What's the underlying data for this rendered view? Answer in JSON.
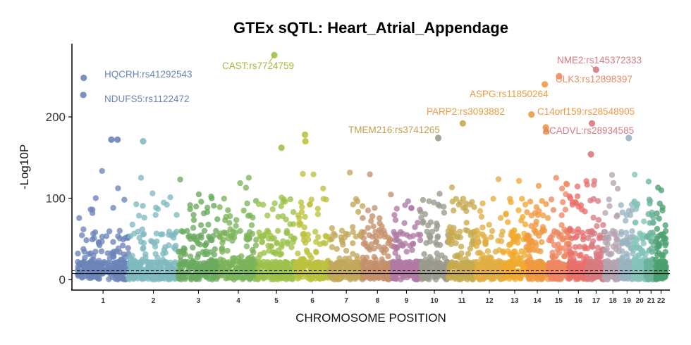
{
  "chart_data": {
    "type": "scatter",
    "subtype": "manhattan",
    "title": "GTEx sQTL: Heart_Atrial_Appendage",
    "xlabel": "CHROMOSOME POSITION",
    "ylabel": "-Log10P",
    "ylim": [
      -5,
      290
    ],
    "yticks": [
      0,
      100,
      200
    ],
    "grid": false,
    "legend": "none",
    "significance_line": 7.3,
    "chromosomes": [
      {
        "name": "1",
        "color": "#6b84b8",
        "start": 0,
        "end": 2.49
      },
      {
        "name": "2",
        "color": "#7fbac0",
        "start": 2.49,
        "end": 4.91
      },
      {
        "name": "3",
        "color": "#6aaa60",
        "start": 4.91,
        "end": 6.89
      },
      {
        "name": "4",
        "color": "#7bb45a",
        "start": 6.89,
        "end": 8.8
      },
      {
        "name": "5",
        "color": "#9cc24a",
        "start": 8.8,
        "end": 10.61
      },
      {
        "name": "6",
        "color": "#bcc23e",
        "start": 10.61,
        "end": 12.32
      },
      {
        "name": "7",
        "color": "#c2a85a",
        "start": 12.32,
        "end": 13.91
      },
      {
        "name": "8",
        "color": "#c4906a",
        "start": 13.91,
        "end": 15.36
      },
      {
        "name": "9",
        "color": "#b07aa4",
        "start": 15.36,
        "end": 16.74
      },
      {
        "name": "10",
        "color": "#9a9a8e",
        "start": 16.74,
        "end": 18.08
      },
      {
        "name": "11",
        "color": "#c6aa50",
        "start": 18.08,
        "end": 19.43
      },
      {
        "name": "12",
        "color": "#e0ae42",
        "start": 19.43,
        "end": 20.76
      },
      {
        "name": "13",
        "color": "#f0aa2e",
        "start": 20.76,
        "end": 21.9
      },
      {
        "name": "14",
        "color": "#f09a40",
        "start": 21.9,
        "end": 22.97
      },
      {
        "name": "15",
        "color": "#ee8860",
        "start": 22.97,
        "end": 23.99
      },
      {
        "name": "16",
        "color": "#e8706a",
        "start": 23.99,
        "end": 24.89
      },
      {
        "name": "17",
        "color": "#d87a80",
        "start": 24.89,
        "end": 25.72
      },
      {
        "name": "18",
        "color": "#b4a4b0",
        "start": 25.72,
        "end": 26.52
      },
      {
        "name": "19",
        "color": "#98b4c0",
        "start": 26.52,
        "end": 27.11
      },
      {
        "name": "20",
        "color": "#84c4b8",
        "start": 27.11,
        "end": 27.75
      },
      {
        "name": "21",
        "color": "#6cb49c",
        "start": 27.75,
        "end": 28.22
      },
      {
        "name": "22",
        "color": "#4aa070",
        "start": 28.22,
        "end": 28.73
      }
    ],
    "xticks": [
      "1",
      "2",
      "3",
      "4",
      "5",
      "6",
      "7",
      "8",
      "9",
      "10",
      "11",
      "12",
      "13",
      "14",
      "15",
      "16",
      "17",
      "18",
      "19",
      "20",
      "21",
      "22"
    ],
    "annotations": [
      {
        "label": "HQCRH:rs41292543",
        "chrom": "1",
        "pos": 0.3,
        "y": 248,
        "color": "#6b84b8"
      },
      {
        "label": "NDUFS5:rs1122472",
        "chrom": "1",
        "pos": 0.3,
        "y": 227,
        "color": "#6b84b8"
      },
      {
        "label": "CAST:rs7724759",
        "chrom": "5",
        "pos": 9.6,
        "y": 276,
        "color": "#a8b83a"
      },
      {
        "label": "TMEM216:rs3741265",
        "chrom": "11",
        "pos": 18.8,
        "y": 192,
        "color": "#c2a050"
      },
      {
        "label": "PARP2:rs3093882",
        "chrom": "14",
        "pos": 22.15,
        "y": 203,
        "color": "#f09a40"
      },
      {
        "label": "ASPG:rs11850264",
        "chrom": "14",
        "pos": 22.8,
        "y": 240,
        "color": "#f09a40"
      },
      {
        "label": "C14orf159:rs28548905",
        "chrom": "14",
        "pos": 22.85,
        "y": 187,
        "color": "#f09a40"
      },
      {
        "label": "ULK3:rs12898397",
        "chrom": "15",
        "pos": 23.5,
        "y": 250,
        "color": "#ee8860"
      },
      {
        "label": "NME2:rs145372333",
        "chrom": "17",
        "pos": 25.3,
        "y": 258,
        "color": "#d87a80"
      },
      {
        "label": "ACADVL:rs28934585",
        "chrom": "17",
        "pos": 25.1,
        "y": 192,
        "color": "#d87a80"
      }
    ],
    "highlight_points": [
      {
        "chrom": "1",
        "pos": 0.3,
        "y": 248
      },
      {
        "chrom": "1",
        "pos": 0.28,
        "y": 227
      },
      {
        "chrom": "1",
        "pos": 1.65,
        "y": 172
      },
      {
        "chrom": "1",
        "pos": 1.95,
        "y": 172
      },
      {
        "chrom": "2",
        "pos": 3.2,
        "y": 170
      },
      {
        "chrom": "5",
        "pos": 9.6,
        "y": 276
      },
      {
        "chrom": "5",
        "pos": 9.95,
        "y": 162
      },
      {
        "chrom": "6",
        "pos": 11.1,
        "y": 178
      },
      {
        "chrom": "6",
        "pos": 11.12,
        "y": 170
      },
      {
        "chrom": "10",
        "pos": 17.6,
        "y": 174
      },
      {
        "chrom": "11",
        "pos": 18.8,
        "y": 192
      },
      {
        "chrom": "14",
        "pos": 22.15,
        "y": 203
      },
      {
        "chrom": "14",
        "pos": 22.8,
        "y": 240
      },
      {
        "chrom": "14",
        "pos": 22.85,
        "y": 187
      },
      {
        "chrom": "14",
        "pos": 22.87,
        "y": 182
      },
      {
        "chrom": "15",
        "pos": 23.5,
        "y": 250
      },
      {
        "chrom": "17",
        "pos": 25.3,
        "y": 258
      },
      {
        "chrom": "17",
        "pos": 25.1,
        "y": 192
      },
      {
        "chrom": "17",
        "pos": 25.05,
        "y": 154
      },
      {
        "chrom": "19",
        "pos": 26.9,
        "y": 174
      }
    ]
  }
}
